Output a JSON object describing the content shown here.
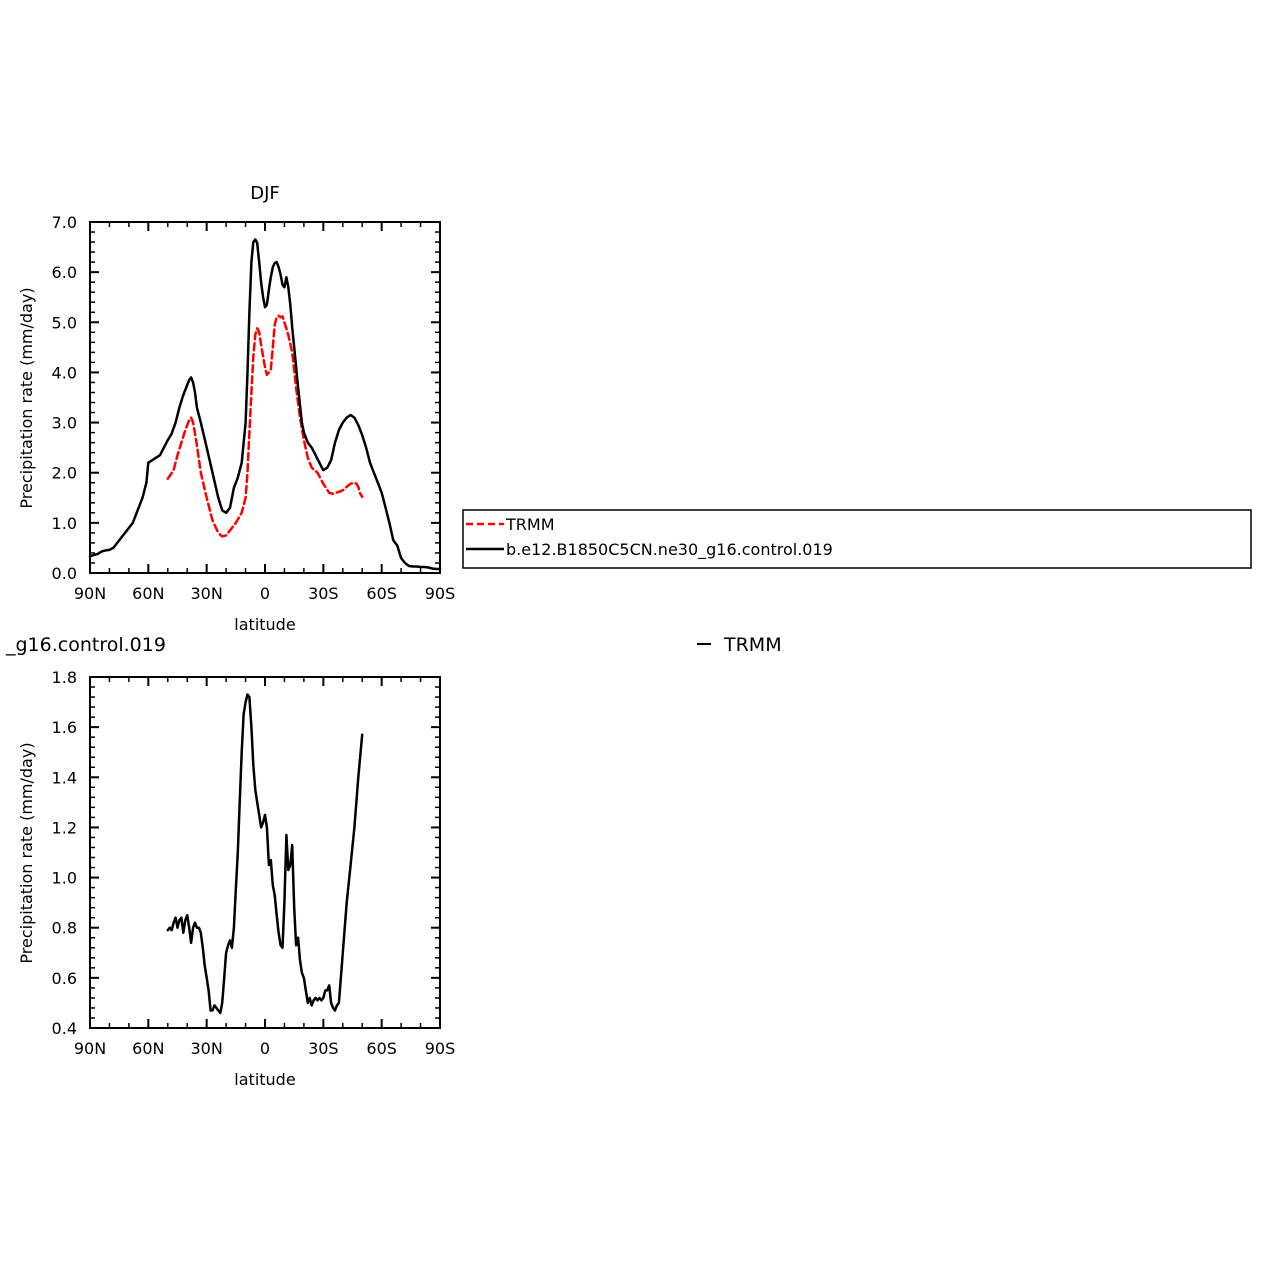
{
  "chart_data": [
    {
      "type": "line",
      "title": "DJF",
      "xlabel": "latitude",
      "ylabel": "Precipitation rate (mm/day)",
      "xlim": [
        90,
        -90
      ],
      "ylim": [
        0,
        7
      ],
      "x_ticks": [
        90,
        60,
        30,
        0,
        -30,
        -60,
        -90
      ],
      "x_tick_labels": [
        "90N",
        "60N",
        "30N",
        "0",
        "30S",
        "60S",
        "90S"
      ],
      "y_ticks": [
        0,
        1,
        2,
        3,
        4,
        5,
        6,
        7
      ],
      "y_tick_labels": [
        "0.0",
        "1.0",
        "2.0",
        "3.0",
        "4.0",
        "5.0",
        "6.0",
        "7.0"
      ],
      "legend_position": "right, outside plot",
      "series": [
        {
          "name": "TRMM",
          "color": "#ff0000",
          "dash": "dashed",
          "x": [
            50,
            47,
            45,
            43,
            41,
            39,
            38,
            37,
            35,
            33,
            30,
            27,
            24,
            22,
            20,
            18,
            15,
            12,
            10,
            9,
            8,
            7,
            6,
            5,
            4,
            3,
            2,
            0,
            -1,
            -3,
            -4,
            -5,
            -6,
            -7,
            -8,
            -9,
            -10,
            -12,
            -14,
            -16,
            -18,
            -20,
            -22,
            -24,
            -27,
            -30,
            -33,
            -35,
            -38,
            -40,
            -42,
            -44,
            -46,
            -47,
            -48,
            -49,
            -50
          ],
          "y": [
            1.88,
            2.05,
            2.35,
            2.6,
            2.85,
            3.05,
            3.1,
            3.0,
            2.55,
            2.0,
            1.5,
            1.05,
            0.8,
            0.73,
            0.75,
            0.85,
            1.0,
            1.2,
            1.5,
            2.0,
            2.8,
            3.6,
            4.3,
            4.75,
            4.88,
            4.8,
            4.55,
            4.1,
            3.95,
            4.05,
            4.5,
            4.95,
            5.1,
            5.13,
            5.1,
            5.12,
            5.0,
            4.75,
            4.4,
            3.7,
            3.1,
            2.65,
            2.3,
            2.1,
            2.0,
            1.78,
            1.6,
            1.58,
            1.62,
            1.65,
            1.72,
            1.78,
            1.8,
            1.78,
            1.72,
            1.58,
            1.52
          ]
        },
        {
          "name": "b.e12.B1850C5CN.ne30_g16.control.019",
          "color": "#000000",
          "dash": "solid",
          "x": [
            90,
            88,
            86,
            84,
            82,
            80,
            78,
            76,
            74,
            72,
            70,
            68,
            65,
            63,
            61,
            60,
            58,
            56,
            54,
            52,
            50,
            48,
            46,
            44,
            42,
            40,
            39,
            38,
            37,
            36,
            35,
            33,
            30,
            27,
            24,
            22,
            20,
            18,
            16,
            14,
            12,
            10,
            9,
            8,
            7,
            6,
            5,
            4,
            3,
            2,
            1,
            0,
            -1,
            -2,
            -3,
            -4,
            -5,
            -6,
            -7,
            -8,
            -9,
            -10,
            -11,
            -12,
            -13,
            -14,
            -15,
            -17,
            -19,
            -20,
            -22,
            -24,
            -26,
            -28,
            -30,
            -32,
            -34,
            -36,
            -38,
            -40,
            -42,
            -44,
            -46,
            -48,
            -50,
            -52,
            -54,
            -56,
            -58,
            -60,
            -62,
            -64,
            -66,
            -68,
            -70,
            -72,
            -74,
            -76,
            -78,
            -80,
            -82,
            -84,
            -86,
            -88,
            -90
          ],
          "y": [
            0.33,
            0.36,
            0.38,
            0.43,
            0.45,
            0.46,
            0.5,
            0.6,
            0.7,
            0.8,
            0.9,
            1.0,
            1.3,
            1.5,
            1.8,
            2.2,
            2.25,
            2.3,
            2.35,
            2.5,
            2.65,
            2.78,
            3.0,
            3.3,
            3.55,
            3.75,
            3.85,
            3.9,
            3.8,
            3.6,
            3.3,
            3.0,
            2.5,
            2.0,
            1.5,
            1.25,
            1.2,
            1.3,
            1.7,
            1.9,
            2.2,
            3.0,
            4.0,
            5.2,
            6.2,
            6.6,
            6.65,
            6.58,
            6.2,
            5.8,
            5.5,
            5.3,
            5.35,
            5.65,
            5.9,
            6.1,
            6.18,
            6.2,
            6.1,
            5.95,
            5.75,
            5.7,
            5.9,
            5.7,
            5.35,
            4.9,
            4.5,
            3.7,
            3.0,
            2.8,
            2.6,
            2.5,
            2.35,
            2.2,
            2.05,
            2.1,
            2.25,
            2.6,
            2.85,
            3.0,
            3.1,
            3.15,
            3.1,
            2.95,
            2.75,
            2.5,
            2.2,
            2.0,
            1.8,
            1.6,
            1.3,
            1.0,
            0.65,
            0.55,
            0.3,
            0.2,
            0.14,
            0.13,
            0.13,
            0.12,
            0.12,
            0.11,
            0.09,
            0.08,
            0.08
          ]
        }
      ]
    },
    {
      "type": "line",
      "title": "_g16.control.019",
      "right_string": "TRMM",
      "xlabel": "latitude",
      "ylabel": "Precipitation rate (mm/day)",
      "xlim": [
        90,
        -90
      ],
      "ylim": [
        0.4,
        1.8
      ],
      "x_ticks": [
        90,
        60,
        30,
        0,
        -30,
        -60,
        -90
      ],
      "x_tick_labels": [
        "90N",
        "60N",
        "30N",
        "0",
        "30S",
        "60S",
        "90S"
      ],
      "y_ticks": [
        0.4,
        0.6,
        0.8,
        1.0,
        1.2,
        1.4,
        1.6,
        1.8
      ],
      "y_tick_labels": [
        "0.4",
        "0.6",
        "0.8",
        "1.0",
        "1.2",
        "1.4",
        "1.6",
        "1.8"
      ],
      "series": [
        {
          "color": "#000000",
          "dash": "solid",
          "x": [
            50,
            49,
            48,
            47,
            46,
            45,
            44,
            43,
            42,
            41,
            40,
            39,
            38,
            37,
            36,
            35,
            34,
            33,
            32,
            31,
            30,
            29,
            28,
            27,
            26,
            25,
            24,
            23,
            22,
            21,
            20,
            19,
            18,
            17,
            16,
            15,
            14,
            13,
            12,
            11,
            10,
            9,
            8,
            7,
            6,
            5,
            4,
            3,
            2,
            1,
            0,
            -1,
            -2,
            -3,
            -4,
            -5,
            -6,
            -7,
            -8,
            -9,
            -10,
            -11,
            -12,
            -13,
            -14,
            -15,
            -16,
            -17,
            -18,
            -19,
            -20,
            -21,
            -22,
            -23,
            -24,
            -25,
            -26,
            -27,
            -28,
            -29,
            -30,
            -31,
            -32,
            -33,
            -34,
            -35,
            -36,
            -37,
            -38,
            -40,
            -42,
            -44,
            -46,
            -48,
            -50
          ],
          "y": [
            0.79,
            0.8,
            0.79,
            0.82,
            0.84,
            0.8,
            0.83,
            0.84,
            0.78,
            0.83,
            0.85,
            0.8,
            0.74,
            0.8,
            0.82,
            0.8,
            0.8,
            0.78,
            0.72,
            0.65,
            0.6,
            0.55,
            0.47,
            0.47,
            0.49,
            0.48,
            0.47,
            0.46,
            0.5,
            0.6,
            0.7,
            0.73,
            0.75,
            0.72,
            0.8,
            0.95,
            1.1,
            1.3,
            1.5,
            1.65,
            1.7,
            1.73,
            1.72,
            1.6,
            1.45,
            1.35,
            1.3,
            1.25,
            1.2,
            1.22,
            1.25,
            1.2,
            1.05,
            1.07,
            0.97,
            0.93,
            0.85,
            0.78,
            0.73,
            0.72,
            0.9,
            1.17,
            1.03,
            1.05,
            1.13,
            0.88,
            0.73,
            0.76,
            0.67,
            0.62,
            0.6,
            0.55,
            0.5,
            0.52,
            0.49,
            0.51,
            0.52,
            0.51,
            0.52,
            0.51,
            0.52,
            0.55,
            0.55,
            0.57,
            0.5,
            0.48,
            0.47,
            0.49,
            0.5,
            0.7,
            0.9,
            1.05,
            1.2,
            1.4,
            1.57
          ]
        }
      ]
    }
  ],
  "legend": {
    "items": [
      {
        "label": "TRMM",
        "color": "#ff0000",
        "dash": "dashed"
      },
      {
        "label": "b.e12.B1850C5CN.ne30_g16.control.019",
        "color": "#000000",
        "dash": "solid"
      }
    ]
  }
}
